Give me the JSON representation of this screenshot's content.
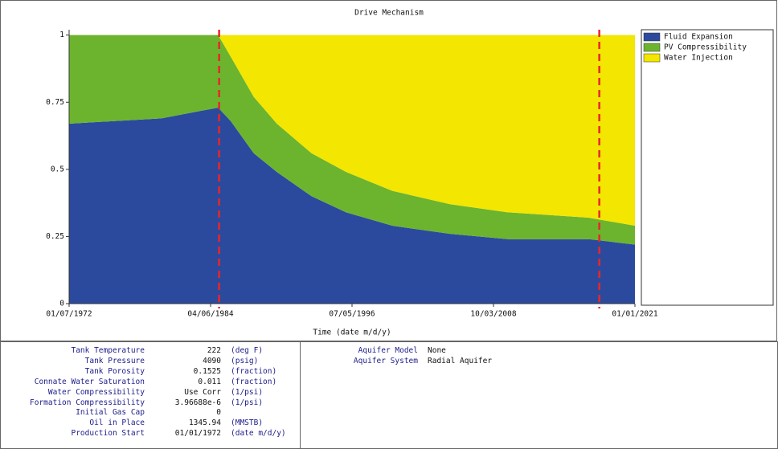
{
  "chart_data": {
    "type": "stacked_area",
    "title": "Drive Mechanism",
    "x_label": "Time (date m/d/y)",
    "x": [
      "01/07/1972",
      "01/01/1980",
      "12/01/1984",
      "01/01/1986",
      "01/01/1988",
      "01/01/1990",
      "01/01/1993",
      "01/01/1996",
      "01/01/2000",
      "01/01/2005",
      "01/01/2010",
      "01/01/2017",
      "01/01/2021"
    ],
    "series": [
      {
        "name": "Fluid Expansion",
        "color": "#2b4a9e",
        "values": [
          0.67,
          0.69,
          0.73,
          0.68,
          0.56,
          0.49,
          0.4,
          0.34,
          0.29,
          0.26,
          0.24,
          0.24,
          0.22
        ]
      },
      {
        "name": "PV Compressibility",
        "color": "#6cb42e",
        "values": [
          0.33,
          0.31,
          0.27,
          0.24,
          0.21,
          0.18,
          0.16,
          0.15,
          0.13,
          0.11,
          0.1,
          0.08,
          0.07
        ]
      },
      {
        "name": "Water Injection",
        "color": "#f3e600",
        "values": [
          0,
          0,
          0,
          0.08,
          0.23,
          0.33,
          0.44,
          0.51,
          0.58,
          0.63,
          0.66,
          0.68,
          0.71
        ]
      }
    ],
    "xlim": [
      "01/07/1972",
      "01/01/2021"
    ],
    "xticks": [
      "01/07/1972",
      "04/06/1984",
      "07/05/1996",
      "10/03/2008",
      "01/01/2021"
    ],
    "ylim": [
      0,
      1.02
    ],
    "yticks": [
      0,
      0.25,
      0.5,
      0.75,
      1
    ],
    "vertical_lines": {
      "color": "#e8262a",
      "x": [
        "01/01/1985",
        "12/01/2017"
      ]
    },
    "legend": "right"
  },
  "properties": {
    "rows": [
      [
        "Tank Temperature",
        "222",
        "(deg F)"
      ],
      [
        "Tank Pressure",
        "4090",
        "(psig)"
      ],
      [
        "Tank Porosity",
        "0.1525",
        "(fraction)"
      ],
      [
        "Connate Water Saturation",
        "0.011",
        "(fraction)"
      ],
      [
        "Water Compressibility",
        "Use Corr",
        "(1/psi)"
      ],
      [
        "Formation Compressibility",
        "3.96688e-6",
        "(1/psi)"
      ],
      [
        "Initial Gas Cap",
        "0",
        ""
      ],
      [
        "Oil in Place",
        "1345.94",
        "(MMSTB)"
      ],
      [
        "Production Start",
        "01/01/1972",
        "(date m/d/y)"
      ]
    ],
    "aquifer": [
      [
        "Aquifer Model",
        "None"
      ],
      [
        "Aquifer System",
        "Radial Aquifer"
      ]
    ]
  }
}
